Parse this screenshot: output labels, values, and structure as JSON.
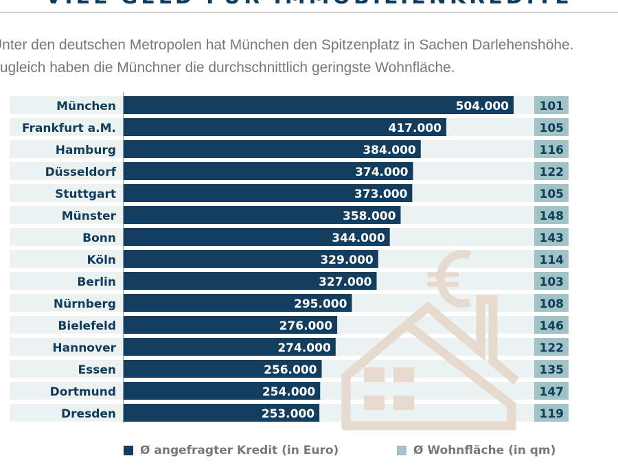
{
  "title": "VIEL GELD FÜR IMMOBILIENKREDITE",
  "intro": [
    "Unter den deutschen Metropolen hat München den Spitzenplatz in Sachen Darlehenshöhe.",
    "Zugleich haben die Münchner die durchschnittlich geringste Wohnfläche."
  ],
  "colors": {
    "kredit": "#123d5e",
    "wohnflaeche": "#a0c3c5",
    "row_bg": "#ecf1f1",
    "illustration": "#e6d9cd"
  },
  "illustration_icon": "house-with-euro-icon",
  "legend": {
    "kredit": "Ø angefragter Kredit (in Euro)",
    "wohnflaeche": "Ø Wohnfläche (in qm)"
  },
  "chart_data": {
    "type": "bar",
    "orientation": "horizontal",
    "categories": [
      "München",
      "Frankfurt a.M.",
      "Hamburg",
      "Düsseldorf",
      "Stuttgart",
      "Münster",
      "Bonn",
      "Köln",
      "Berlin",
      "Nürnberg",
      "Bielefeld",
      "Hannover",
      "Essen",
      "Dortmund",
      "Dresden"
    ],
    "series": [
      {
        "name": "Ø angefragter Kredit (in Euro)",
        "values": [
          504000,
          417000,
          384000,
          374000,
          373000,
          358000,
          344000,
          329000,
          327000,
          295000,
          276000,
          274000,
          256000,
          254000,
          253000
        ],
        "labels": [
          "504.000",
          "417.000",
          "384.000",
          "374.000",
          "373.000",
          "358.000",
          "344.000",
          "329.000",
          "327.000",
          "295.000",
          "276.000",
          "274.000",
          "256.000",
          "254.000",
          "253.000"
        ]
      },
      {
        "name": "Ø Wohnfläche (in qm)",
        "values": [
          101,
          105,
          116,
          122,
          105,
          148,
          143,
          114,
          103,
          108,
          146,
          122,
          135,
          147,
          119
        ]
      }
    ],
    "xlim": [
      0,
      504000
    ],
    "grid": false,
    "legend_position": "bottom"
  }
}
